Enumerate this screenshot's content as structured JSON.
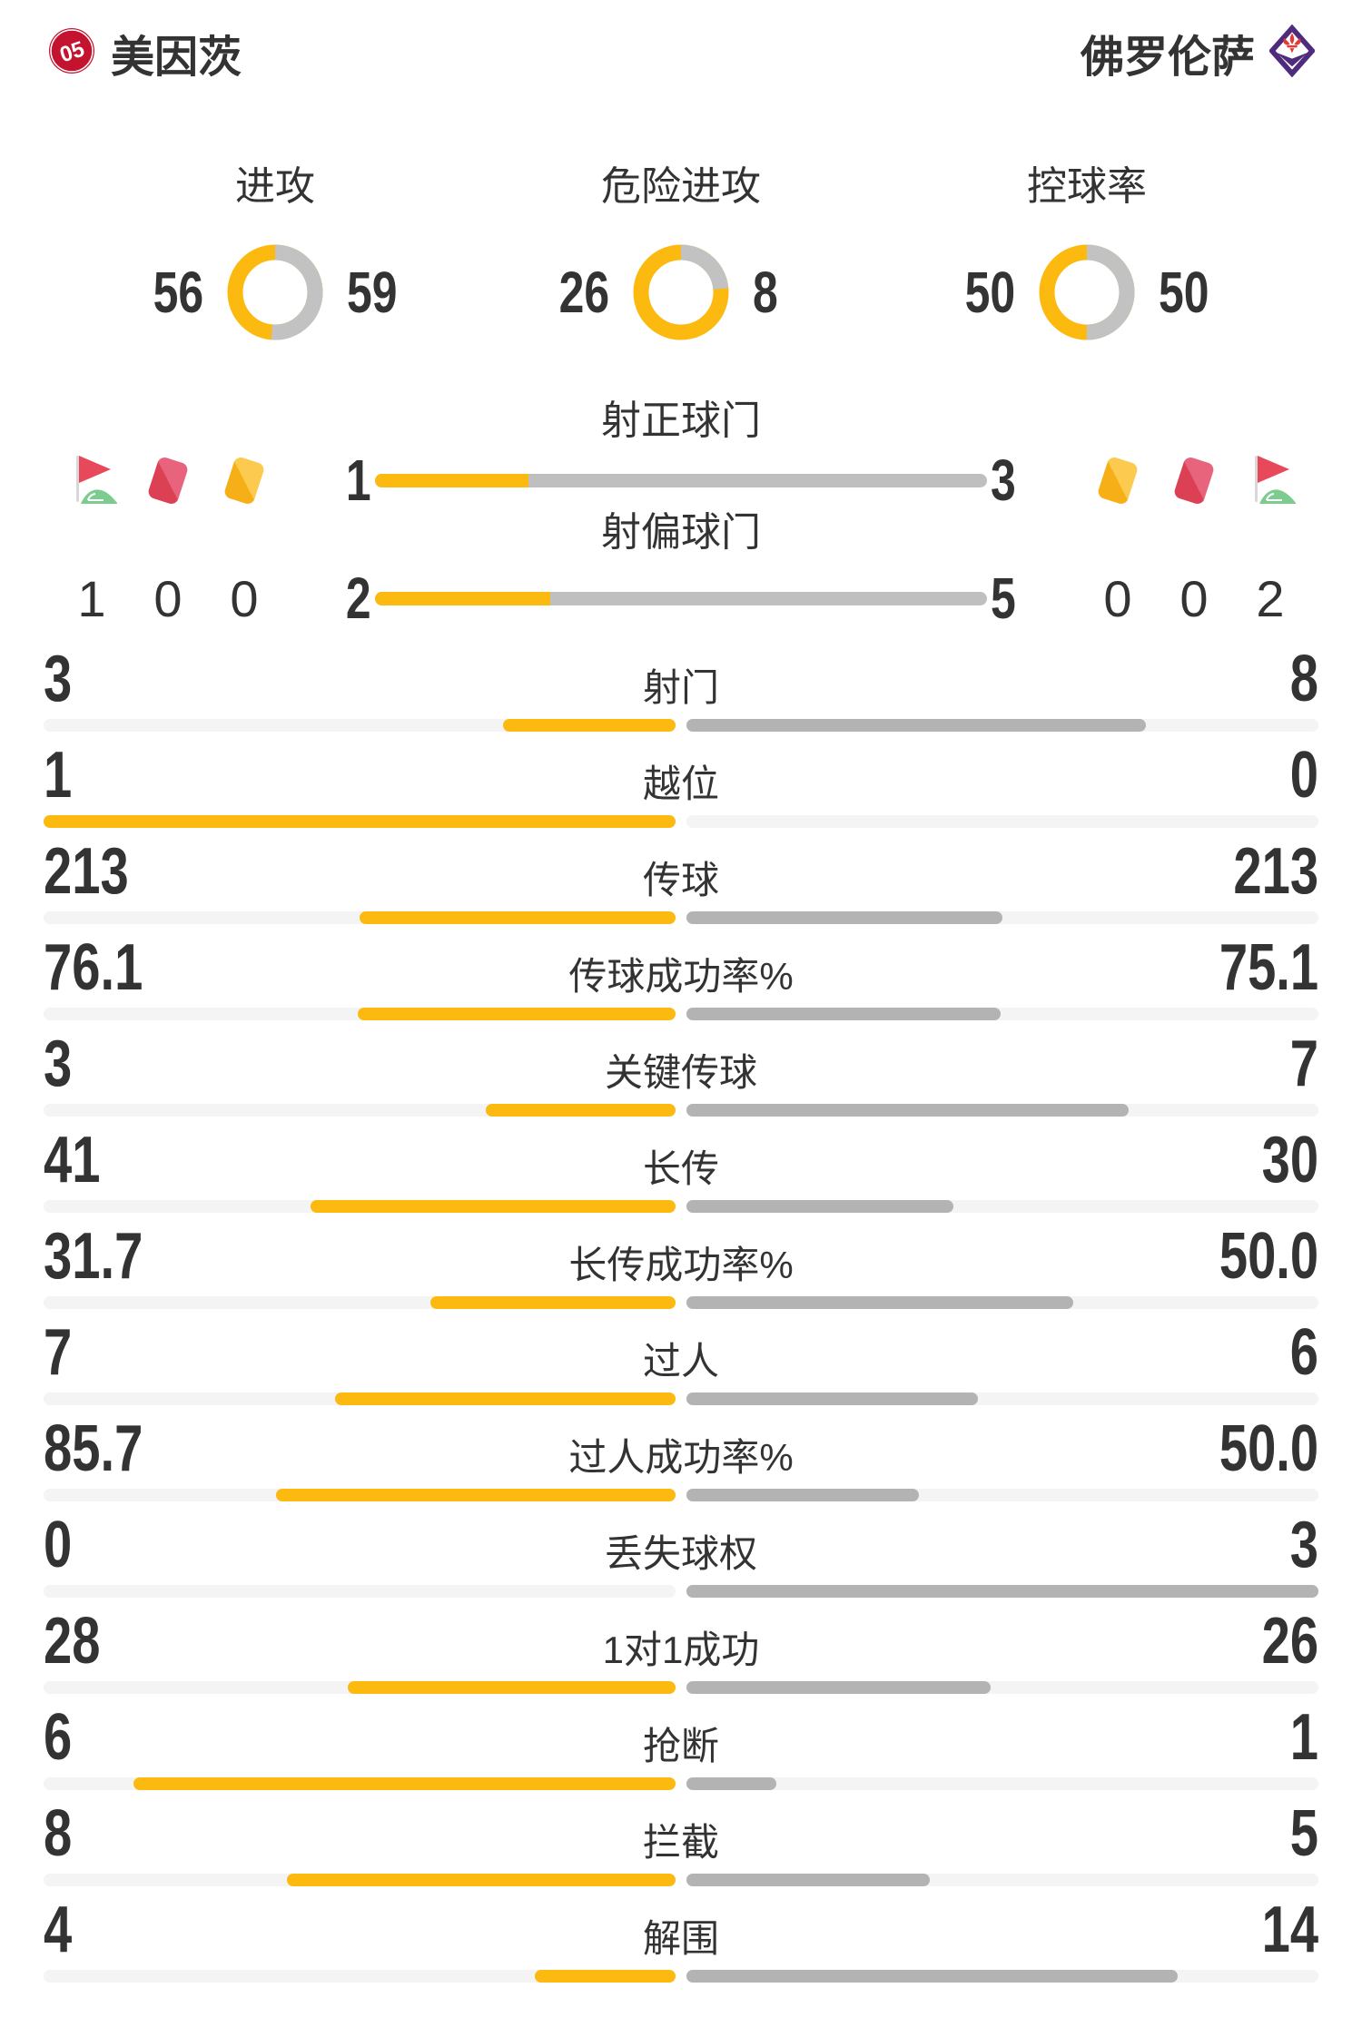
{
  "teams": {
    "home": {
      "name": "美因茨"
    },
    "away": {
      "name": "佛罗伦萨"
    }
  },
  "chart_data": [
    {
      "type": "donut",
      "title": "进攻",
      "categories": [
        "美因茨",
        "佛罗伦萨"
      ],
      "values": [
        56,
        59
      ]
    },
    {
      "type": "donut",
      "title": "危险进攻",
      "categories": [
        "美因茨",
        "佛罗伦萨"
      ],
      "values": [
        26,
        8
      ]
    },
    {
      "type": "donut",
      "title": "控球率",
      "categories": [
        "美因茨",
        "佛罗伦萨"
      ],
      "values": [
        50,
        50
      ]
    },
    {
      "type": "bar",
      "title": "射正球门",
      "categories": [
        "美因茨",
        "佛罗伦萨"
      ],
      "values": [
        1,
        3
      ]
    },
    {
      "type": "bar",
      "title": "射偏球门",
      "categories": [
        "美因茨",
        "佛罗伦萨"
      ],
      "values": [
        2,
        5
      ]
    },
    {
      "type": "bar",
      "title": "比赛数据",
      "categories": [
        "射门",
        "越位",
        "传球",
        "传球成功率%",
        "关键传球",
        "长传",
        "长传成功率%",
        "过人",
        "过人成功率%",
        "丢失球权",
        "1对1成功",
        "抢断",
        "拦截",
        "解围"
      ],
      "series": [
        {
          "name": "美因茨",
          "values": [
            3,
            1,
            213,
            76.1,
            3,
            41,
            31.7,
            7,
            85.7,
            0,
            28,
            6,
            8,
            4
          ]
        },
        {
          "name": "佛罗伦萨",
          "values": [
            8,
            0,
            213,
            75.1,
            7,
            30,
            50.0,
            6,
            50.0,
            3,
            26,
            1,
            5,
            14
          ]
        }
      ]
    }
  ],
  "display": {
    "shots_on": [
      "1",
      "3"
    ],
    "shots_off": [
      "2",
      "5"
    ],
    "stats_home": [
      "3",
      "1",
      "213",
      "76.1",
      "3",
      "41",
      "31.7",
      "7",
      "85.7",
      "0",
      "28",
      "6",
      "8",
      "4"
    ],
    "stats_away": [
      "8",
      "0",
      "213",
      "75.1",
      "7",
      "30",
      "50.0",
      "6",
      "50.0",
      "3",
      "26",
      "1",
      "5",
      "14"
    ]
  },
  "cards": {
    "home": {
      "corner": "1",
      "red": "0",
      "yellow": "0"
    },
    "away": {
      "yellow": "0",
      "red": "0",
      "corner": "2"
    }
  },
  "colors": {
    "accent_yellow": "#FCB90F",
    "donut_gray": "#C2C2C2",
    "bar_gray": "#B3B3B3",
    "card_bar_gray": "#BFBFBF",
    "track": "#F4F4F5",
    "text": "#333333",
    "mainz_red": "#C3132F",
    "fiorentina_purple": "#4F2B7E",
    "card_red": "#DC4054",
    "card_yellow": "#F7AF17",
    "flag_green": "#7CCB8F"
  }
}
